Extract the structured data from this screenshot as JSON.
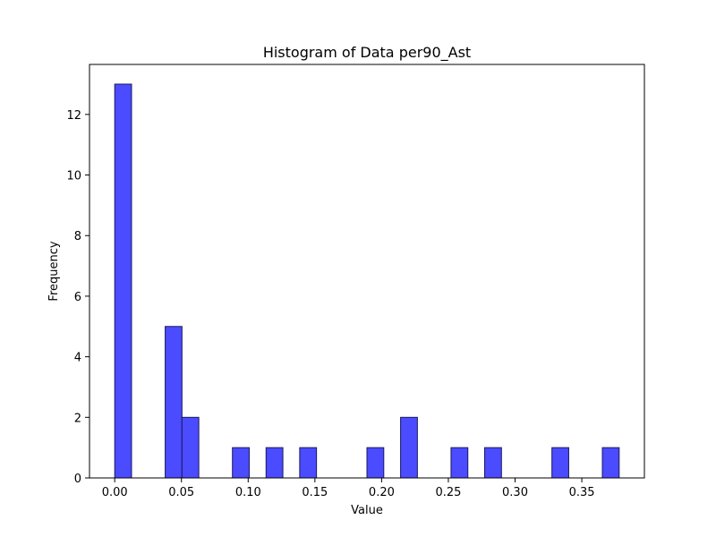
{
  "chart_data": {
    "type": "bar",
    "title": "Histogram of Data per90_Ast",
    "xlabel": "Value",
    "ylabel": "Frequency",
    "bin_width": 0.0126,
    "bins": [
      {
        "x_start": 0.0,
        "count": 13
      },
      {
        "x_start": 0.0378,
        "count": 5
      },
      {
        "x_start": 0.0504,
        "count": 2
      },
      {
        "x_start": 0.0882,
        "count": 1
      },
      {
        "x_start": 0.1134,
        "count": 1
      },
      {
        "x_start": 0.1386,
        "count": 1
      },
      {
        "x_start": 0.189,
        "count": 1
      },
      {
        "x_start": 0.2142,
        "count": 2
      },
      {
        "x_start": 0.252,
        "count": 1
      },
      {
        "x_start": 0.2772,
        "count": 1
      },
      {
        "x_start": 0.3276,
        "count": 1
      },
      {
        "x_start": 0.3654,
        "count": 1
      }
    ],
    "xlim": [
      -0.0189,
      0.3969
    ],
    "ylim": [
      0,
      13.65
    ],
    "xticks": [
      0.0,
      0.05,
      0.1,
      0.15,
      0.2,
      0.25,
      0.3,
      0.35
    ],
    "xtick_labels": [
      "0.00",
      "0.05",
      "0.10",
      "0.15",
      "0.20",
      "0.25",
      "0.30",
      "0.35"
    ],
    "yticks": [
      0,
      2,
      4,
      6,
      8,
      10,
      12
    ],
    "ytick_labels": [
      "0",
      "2",
      "4",
      "6",
      "8",
      "10",
      "12"
    ],
    "grid": false,
    "bar_color": "#4b4bff",
    "edge_color": "#1a1a5e"
  }
}
